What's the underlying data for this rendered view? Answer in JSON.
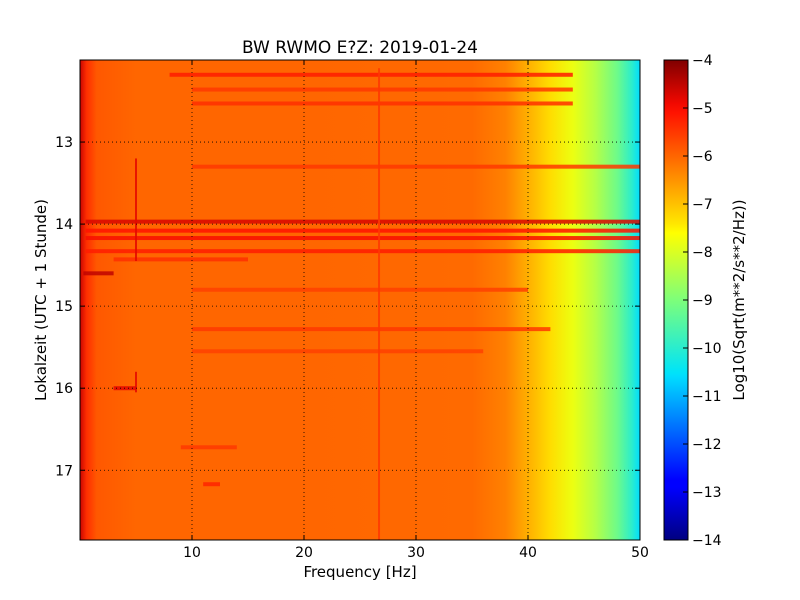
{
  "chart_data": {
    "type": "heatmap",
    "title": "BW RWMO E?Z: 2019-01-24",
    "xlabel": "Frequency [Hz]",
    "ylabel": "Lokalzeit (UTC + 1 Stunde)",
    "xlim": [
      0,
      50
    ],
    "ylim": [
      17.85,
      12.0
    ],
    "x_ticks": [
      10,
      20,
      30,
      40,
      50
    ],
    "y_ticks": [
      13,
      14,
      15,
      16,
      17
    ],
    "grid": true,
    "colormap": "jet",
    "colorbar": {
      "label": "Log10(Sqrt(m**2/s**2/Hz))",
      "range": [
        -14,
        -4
      ],
      "ticks": [
        -4,
        -5,
        -6,
        -7,
        -8,
        -9,
        -10,
        -11,
        -12,
        -13,
        -14
      ]
    },
    "level_profile": [
      {
        "freq": 0.0,
        "value": -4.6
      },
      {
        "freq": 0.6,
        "value": -5.4
      },
      {
        "freq": 1.5,
        "value": -5.85
      },
      {
        "freq": 5,
        "value": -6.0
      },
      {
        "freq": 20,
        "value": -6.0
      },
      {
        "freq": 35,
        "value": -6.05
      },
      {
        "freq": 38,
        "value": -6.3
      },
      {
        "freq": 40,
        "value": -6.8
      },
      {
        "freq": 42,
        "value": -7.3
      },
      {
        "freq": 44,
        "value": -7.8
      },
      {
        "freq": 46,
        "value": -8.4
      },
      {
        "freq": 48,
        "value": -9.2
      },
      {
        "freq": 49.3,
        "value": -10.0
      },
      {
        "freq": 50,
        "value": -10.6
      }
    ],
    "bands": [
      {
        "time": 12.18,
        "freq_range": [
          8,
          44
        ],
        "value": -5.2
      },
      {
        "time": 12.36,
        "freq_range": [
          10,
          44
        ],
        "value": -5.5
      },
      {
        "time": 12.53,
        "freq_range": [
          10,
          44
        ],
        "value": -5.4
      },
      {
        "time": 13.3,
        "freq_range": [
          10,
          50
        ],
        "value": -5.5
      },
      {
        "time": 13.97,
        "freq_range": [
          0.5,
          50
        ],
        "value": -4.7
      },
      {
        "time": 14.08,
        "freq_range": [
          0.5,
          50
        ],
        "value": -5.1
      },
      {
        "time": 14.17,
        "freq_range": [
          0.5,
          50
        ],
        "value": -5.0
      },
      {
        "time": 14.33,
        "freq_range": [
          0.5,
          50
        ],
        "value": -5.2
      },
      {
        "time": 14.43,
        "freq_range": [
          3,
          15
        ],
        "value": -5.4
      },
      {
        "time": 14.6,
        "freq_range": [
          0.3,
          3
        ],
        "value": -4.5
      },
      {
        "time": 14.8,
        "freq_range": [
          10,
          40
        ],
        "value": -5.6
      },
      {
        "time": 15.28,
        "freq_range": [
          10,
          42
        ],
        "value": -5.5
      },
      {
        "time": 15.55,
        "freq_range": [
          10,
          36
        ],
        "value": -5.6
      },
      {
        "time": 16.0,
        "freq_range": [
          3,
          5
        ],
        "value": -4.8
      },
      {
        "time": 16.72,
        "freq_range": [
          9,
          14
        ],
        "value": -5.5
      },
      {
        "time": 17.17,
        "freq_range": [
          11,
          12.5
        ],
        "value": -5.3
      }
    ],
    "vertical_lines": [
      {
        "freq": 5.0,
        "time_range": [
          13.2,
          14.45
        ],
        "value": -4.8
      },
      {
        "freq": 5.0,
        "time_range": [
          15.8,
          16.05
        ],
        "value": -4.8
      },
      {
        "freq": 26.7,
        "time_range": [
          12.1,
          17.85
        ],
        "value": -5.5
      }
    ]
  }
}
